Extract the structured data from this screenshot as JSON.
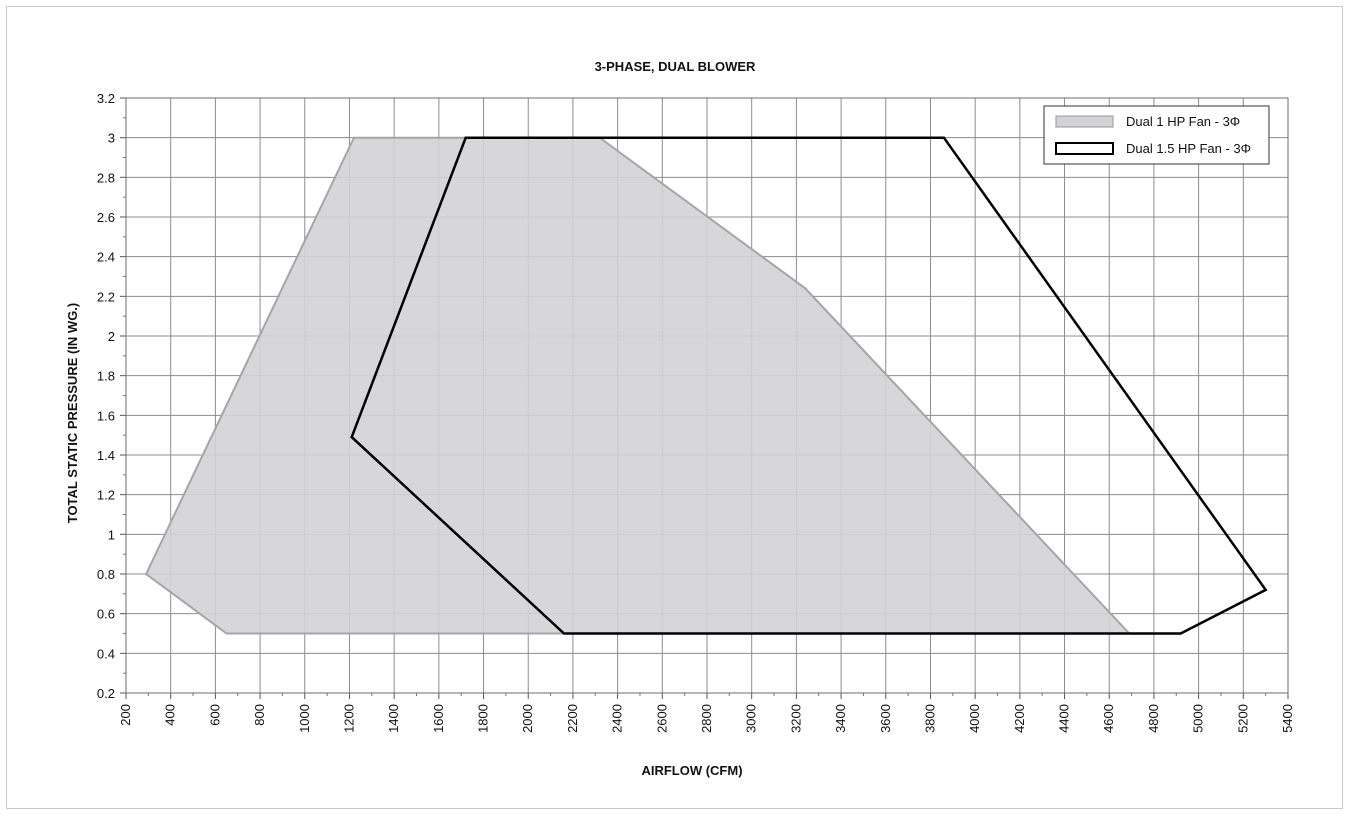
{
  "chart_data": {
    "type": "area",
    "title": "3-PHASE, DUAL BLOWER",
    "xlabel": "AIRFLOW (CFM)",
    "ylabel": "TOTAL STATIC PRESSURE (IN WG.)",
    "xlim": [
      200,
      5400
    ],
    "ylim": [
      0.2,
      3.2
    ],
    "grid": true,
    "legend_position": "top-right",
    "x_ticks": [
      "200",
      "400",
      "600",
      "800",
      "1000",
      "1200",
      "1400",
      "1600",
      "1800",
      "2000",
      "2200",
      "2400",
      "2600",
      "2800",
      "3000",
      "3200",
      "3400",
      "3600",
      "3800",
      "4000",
      "4200",
      "4400",
      "4600",
      "4800",
      "5000",
      "5200",
      "5400"
    ],
    "y_ticks": [
      "0.2",
      "0.4",
      "0.6",
      "0.8",
      "1",
      "1.2",
      "1.4",
      "1.6",
      "1.8",
      "2",
      "2.2",
      "2.4",
      "2.6",
      "2.8",
      "3",
      "3.2"
    ],
    "series": [
      {
        "name": "Dual 1 HP Fan - 3Φ",
        "style": "filled",
        "fill": "#d3d3d6",
        "stroke": "#a5a5a5",
        "points": [
          [
            290,
            0.8
          ],
          [
            1220,
            3.0
          ],
          [
            2320,
            3.0
          ],
          [
            3240,
            2.24
          ],
          [
            4690,
            0.5
          ],
          [
            650,
            0.5
          ]
        ]
      },
      {
        "name": "Dual 1.5 HP Fan - 3Φ",
        "style": "outline",
        "fill": "none",
        "stroke": "#000000",
        "points": [
          [
            1720,
            3.0
          ],
          [
            3860,
            3.0
          ],
          [
            5300,
            0.72
          ],
          [
            4920,
            0.5
          ],
          [
            2160,
            0.5
          ],
          [
            1210,
            1.49
          ]
        ]
      }
    ]
  }
}
